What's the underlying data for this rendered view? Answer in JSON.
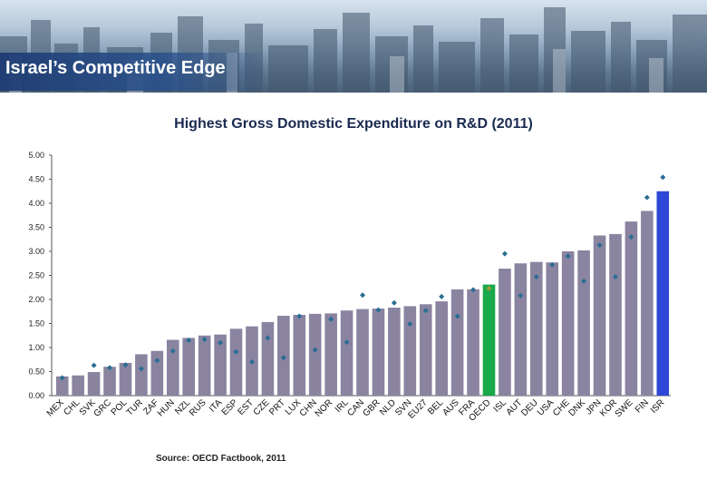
{
  "header": {
    "title": "Israel’s Competitive Edge"
  },
  "source_note": "Source: OECD Factbook, 2011",
  "colors": {
    "bar_default": "#8a84a1",
    "bar_oecd": "#19a84a",
    "bar_israel": "#2f47d6",
    "marker": "#2a6d94",
    "marker_oecd": "#9a9a3a",
    "title_band": "#1e3c73"
  },
  "chart_data": {
    "type": "bar",
    "title": "Highest Gross Domestic Expenditure on R&D (2011)",
    "xlabel": "",
    "ylabel": "",
    "ylim": [
      0,
      5
    ],
    "yticks": [
      "0.00",
      "0.50",
      "1.00",
      "1.50",
      "2.00",
      "2.50",
      "3.00",
      "3.50",
      "4.00",
      "4.50",
      "5.00"
    ],
    "grid": false,
    "legend": "none",
    "categories": [
      "MEX",
      "CHL",
      "SVK",
      "GRC",
      "POL",
      "TUR",
      "ZAF",
      "HUN",
      "NZL",
      "RUS",
      "ITA",
      "ESP",
      "EST",
      "CZE",
      "PRT",
      "LUX",
      "CHN",
      "NOR",
      "IRL",
      "CAN",
      "GBR",
      "NLD",
      "SVN",
      "EU27",
      "BEL",
      "AUS",
      "FRA",
      "OECD",
      "ISL",
      "AUT",
      "DEU",
      "USA",
      "CHE",
      "DNK",
      "JPN",
      "KOR",
      "SWE",
      "FIN",
      "ISR"
    ],
    "series": [
      {
        "style": "bars",
        "values": [
          0.4,
          0.42,
          0.49,
          0.6,
          0.68,
          0.86,
          0.93,
          1.16,
          1.2,
          1.25,
          1.27,
          1.39,
          1.44,
          1.53,
          1.66,
          1.68,
          1.7,
          1.71,
          1.77,
          1.8,
          1.81,
          1.83,
          1.86,
          1.9,
          1.96,
          2.21,
          2.21,
          2.31,
          2.64,
          2.75,
          2.78,
          2.77,
          3.0,
          3.02,
          3.33,
          3.36,
          3.62,
          3.84,
          4.25
        ]
      },
      {
        "style": "markers",
        "values": [
          0.37,
          null,
          0.63,
          0.58,
          0.64,
          0.56,
          0.73,
          0.93,
          1.15,
          1.17,
          1.1,
          0.91,
          0.7,
          1.2,
          0.79,
          1.65,
          0.95,
          1.59,
          1.11,
          2.09,
          1.78,
          1.93,
          1.49,
          1.77,
          2.06,
          1.65,
          2.2,
          2.23,
          2.95,
          2.08,
          2.47,
          2.72,
          2.9,
          2.38,
          3.13,
          2.47,
          3.3,
          4.12,
          4.54
        ]
      }
    ]
  }
}
